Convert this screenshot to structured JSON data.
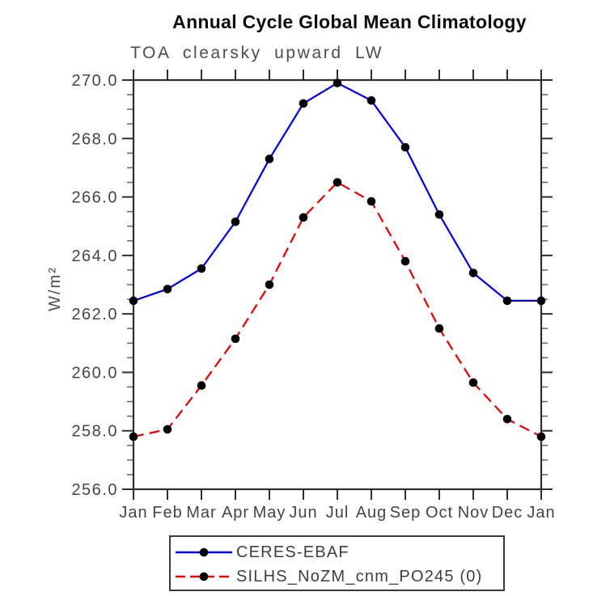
{
  "page": {
    "title": "Annual Cycle Global Mean Climatology",
    "subtitle": "TOA clearsky upward LW",
    "ylabel": "W/m²"
  },
  "colors": {
    "series1": "#0000ee",
    "series2": "#ee0000",
    "marker": "#000000",
    "axis": "#2e2e2e",
    "minor_tick": "#6e6e6e",
    "text": "#454545"
  },
  "chart_data": {
    "type": "line",
    "title": "Annual Cycle Global Mean Climatology",
    "subtitle": "TOA clearsky upward LW",
    "xlabel": "",
    "ylabel": "W/m²",
    "categories": [
      "Jan",
      "Feb",
      "Mar",
      "Apr",
      "May",
      "Jun",
      "Jul",
      "Aug",
      "Sep",
      "Oct",
      "Nov",
      "Dec",
      "Jan"
    ],
    "ylim": [
      256.0,
      270.0
    ],
    "ytick_major_interval": 2.0,
    "ytick_minor_interval": 0.5,
    "ytick_labels": [
      "256.0",
      "258.0",
      "260.0",
      "262.0",
      "264.0",
      "266.0",
      "268.0",
      "270.0"
    ],
    "grid": false,
    "legend_position": "bottom",
    "series": [
      {
        "name": "CERES-EBAF",
        "color": "#0000ee",
        "line_style": "solid",
        "marker": "circle",
        "marker_color": "#000000",
        "values": [
          262.45,
          262.85,
          263.55,
          265.15,
          267.3,
          269.2,
          269.9,
          269.3,
          267.7,
          265.4,
          263.4,
          262.45,
          262.45
        ]
      },
      {
        "name": "SILHS_NoZM_cnm_PO245 (0)",
        "color": "#ee0000",
        "line_style": "dashed",
        "marker": "circle",
        "marker_color": "#000000",
        "values": [
          257.8,
          258.05,
          259.55,
          261.15,
          263.0,
          265.3,
          266.5,
          265.85,
          263.8,
          261.5,
          259.65,
          258.4,
          257.8
        ]
      }
    ]
  }
}
